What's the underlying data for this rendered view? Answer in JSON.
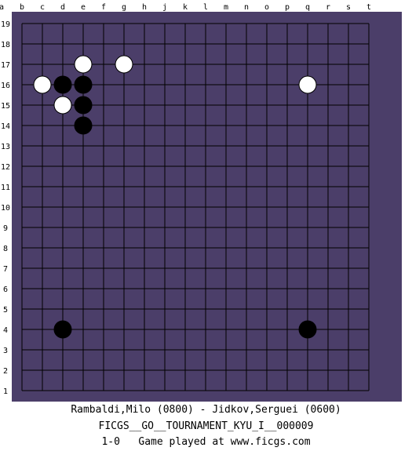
{
  "board": {
    "size": 19,
    "columns": [
      "a",
      "b",
      "c",
      "d",
      "e",
      "f",
      "g",
      "h",
      "j",
      "k",
      "l",
      "m",
      "n",
      "o",
      "p",
      "q",
      "r",
      "s",
      "t"
    ],
    "grid_columns": [
      "b",
      "c",
      "d",
      "e",
      "f",
      "g",
      "h",
      "j",
      "k",
      "l",
      "m",
      "n",
      "o",
      "p",
      "q",
      "r",
      "s",
      "t"
    ],
    "rows": [
      "19",
      "18",
      "17",
      "16",
      "15",
      "14",
      "13",
      "12",
      "11",
      "10",
      "9",
      "8",
      "7",
      "6",
      "5",
      "4",
      "3",
      "2",
      "1"
    ],
    "board_color": "#4b3e69",
    "stones": [
      {
        "color": "white",
        "point": "e17"
      },
      {
        "color": "white",
        "point": "g17"
      },
      {
        "color": "white",
        "point": "c16"
      },
      {
        "color": "black",
        "point": "d16"
      },
      {
        "color": "black",
        "point": "e16"
      },
      {
        "color": "white",
        "point": "q16"
      },
      {
        "color": "white",
        "point": "d15"
      },
      {
        "color": "black",
        "point": "e15"
      },
      {
        "color": "black",
        "point": "e14"
      },
      {
        "color": "black",
        "point": "d4"
      },
      {
        "color": "black",
        "point": "q4"
      }
    ]
  },
  "game": {
    "players": "Rambaldi,Milo (0800) - Jidkov,Serguei (0600)",
    "tournament": "FICGS__GO__TOURNAMENT_KYU_I__000009",
    "result": "1-0",
    "footer": "Game played at www.ficgs.com"
  }
}
